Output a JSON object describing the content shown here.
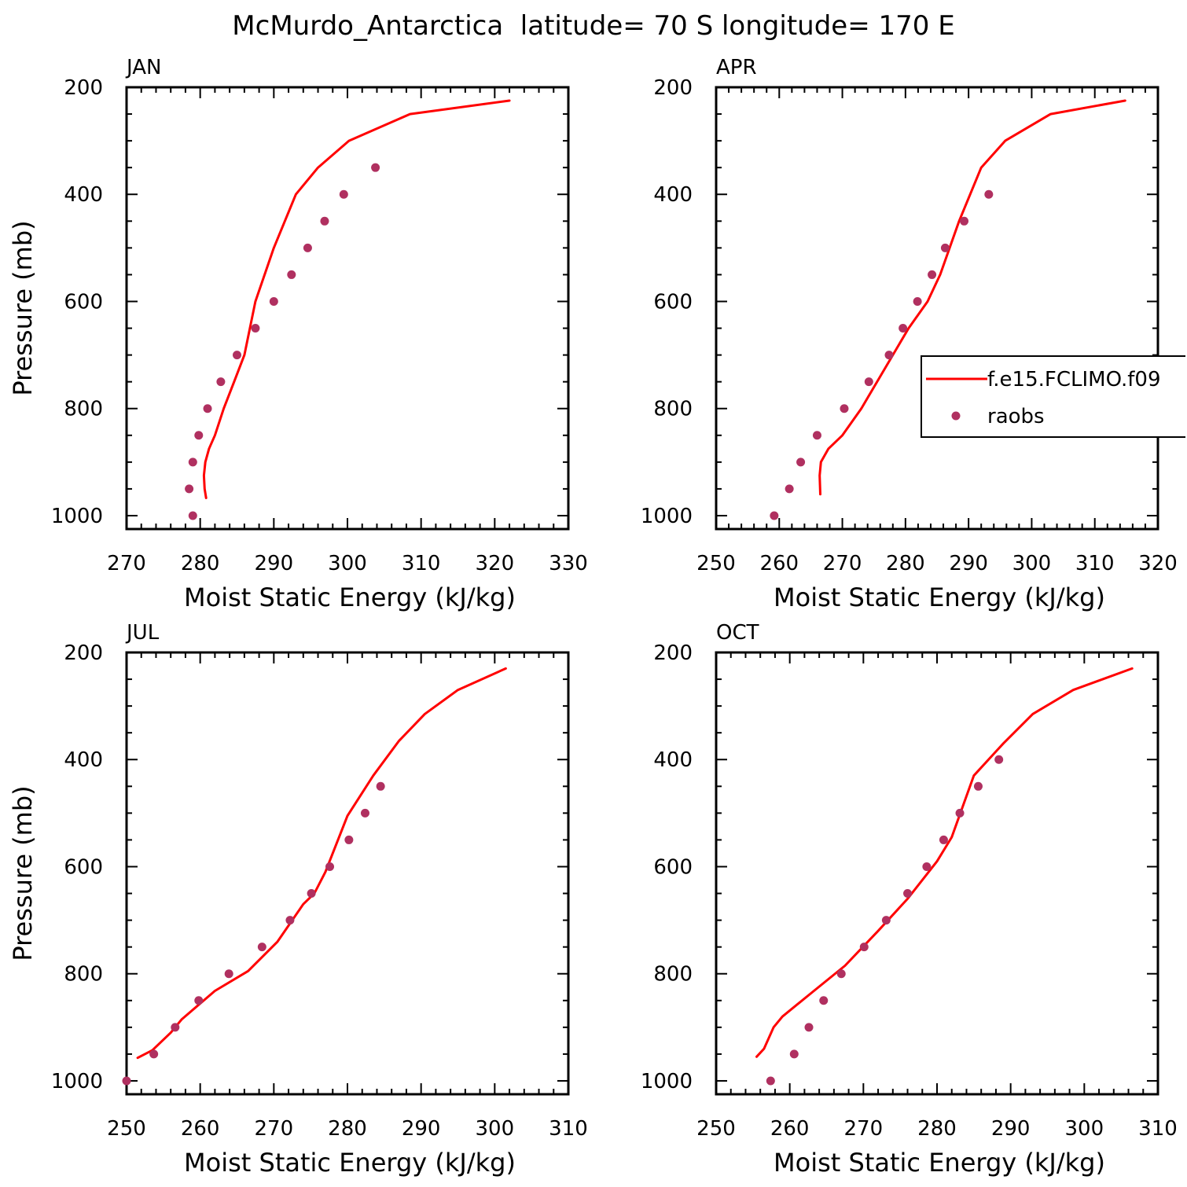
{
  "figure": {
    "title": "McMurdo_Antarctica  latitude= 70 S longitude= 170 E"
  },
  "colors": {
    "model_line": "#ff0000",
    "obs_dot": "#b03060",
    "axis": "#000000"
  },
  "legend": {
    "entries": [
      {
        "label": "f.e15.FCLIMO.f09",
        "kind": "line"
      },
      {
        "label": "raobs",
        "kind": "marker"
      }
    ]
  },
  "chart_data": [
    {
      "type": "line",
      "panel_label": "JAN",
      "xlabel": "Moist Static Energy (kJ/kg)",
      "ylabel": "Pressure (mb)",
      "xlim": [
        270,
        330
      ],
      "ylim": [
        1025,
        200
      ],
      "xticks": [
        270,
        280,
        290,
        300,
        310,
        320,
        330
      ],
      "yticks": [
        200,
        400,
        600,
        800,
        1000
      ],
      "series": [
        {
          "name": "f.e15.FCLIMO.f09",
          "kind": "line",
          "x": [
            280.8,
            280.6,
            280.5,
            280.7,
            281.2,
            282.0,
            283.2,
            284.6,
            286.0,
            287.5,
            290.0,
            293.0,
            296.0,
            300.2,
            308.5,
            322.0
          ],
          "y": [
            967,
            950,
            925,
            900,
            875,
            850,
            800,
            750,
            700,
            600,
            500,
            400,
            350,
            300,
            250,
            225
          ]
        },
        {
          "name": "raobs",
          "kind": "marker",
          "x": [
            279.0,
            278.5,
            279.0,
            279.8,
            281.0,
            282.8,
            285.0,
            287.5,
            290.0,
            292.4,
            294.6,
            296.9,
            299.5,
            303.8
          ],
          "y": [
            1000,
            950,
            900,
            850,
            800,
            750,
            700,
            650,
            600,
            550,
            500,
            450,
            400,
            350
          ]
        }
      ]
    },
    {
      "type": "line",
      "panel_label": "APR",
      "xlabel": "Moist Static Energy (kJ/kg)",
      "ylabel": "",
      "xlim": [
        250,
        320
      ],
      "ylim": [
        1025,
        200
      ],
      "xticks": [
        250,
        260,
        270,
        280,
        290,
        300,
        310,
        320
      ],
      "yticks": [
        200,
        400,
        600,
        800,
        1000
      ],
      "series": [
        {
          "name": "f.e15.FCLIMO.f09",
          "kind": "line",
          "x": [
            266.5,
            266.4,
            266.6,
            267.8,
            270.0,
            273.0,
            275.5,
            278.0,
            280.5,
            283.5,
            285.5,
            288.5,
            292.0,
            295.8,
            303.0,
            314.8
          ],
          "y": [
            960,
            925,
            900,
            875,
            850,
            800,
            750,
            700,
            650,
            600,
            550,
            450,
            350,
            300,
            250,
            225
          ]
        },
        {
          "name": "raobs",
          "kind": "marker",
          "x": [
            259.2,
            261.6,
            263.4,
            266.0,
            270.3,
            274.2,
            277.4,
            279.6,
            281.9,
            284.2,
            286.3,
            289.3,
            293.2
          ],
          "y": [
            1000,
            950,
            900,
            850,
            800,
            750,
            700,
            650,
            600,
            550,
            500,
            450,
            400
          ]
        }
      ]
    },
    {
      "type": "line",
      "panel_label": "JUL",
      "xlabel": "Moist Static Energy (kJ/kg)",
      "ylabel": "Pressure (mb)",
      "xlim": [
        250,
        310
      ],
      "ylim": [
        1025,
        200
      ],
      "xticks": [
        250,
        260,
        270,
        280,
        290,
        300,
        310
      ],
      "yticks": [
        200,
        400,
        600,
        800,
        1000
      ],
      "series": [
        {
          "name": "f.e15.FCLIMO.f09",
          "kind": "line",
          "x": [
            251.5,
            253.5,
            256.0,
            257.5,
            262.0,
            266.5,
            270.5,
            274.0,
            275.5,
            277.0,
            280.0,
            283.5,
            287.0,
            290.5,
            295.0,
            301.5
          ],
          "y": [
            957,
            943,
            910,
            885,
            832,
            795,
            740,
            670,
            650,
            610,
            505,
            430,
            365,
            315,
            270,
            230
          ]
        },
        {
          "name": "raobs",
          "kind": "marker",
          "x": [
            250.0,
            253.7,
            256.6,
            259.8,
            263.9,
            268.4,
            272.2,
            275.1,
            277.6,
            280.2,
            282.4,
            284.5
          ],
          "y": [
            1000,
            950,
            900,
            850,
            800,
            750,
            700,
            650,
            600,
            550,
            500,
            450
          ]
        }
      ]
    },
    {
      "type": "line",
      "panel_label": "OCT",
      "xlabel": "Moist Static Energy (kJ/kg)",
      "ylabel": "",
      "xlim": [
        250,
        310
      ],
      "ylim": [
        1025,
        200
      ],
      "xticks": [
        250,
        260,
        270,
        280,
        290,
        300,
        310
      ],
      "yticks": [
        200,
        400,
        600,
        800,
        1000
      ],
      "series": [
        {
          "name": "f.e15.FCLIMO.f09",
          "kind": "line",
          "x": [
            255.5,
            256.5,
            257.8,
            259.0,
            263.0,
            267.5,
            272.0,
            276.0,
            280.0,
            282.0,
            285.0,
            289.0,
            293.0,
            298.5,
            306.5
          ],
          "y": [
            955,
            940,
            900,
            880,
            835,
            785,
            720,
            660,
            590,
            545,
            430,
            370,
            315,
            270,
            230
          ]
        },
        {
          "name": "raobs",
          "kind": "marker",
          "x": [
            257.4,
            260.6,
            262.6,
            264.6,
            267.0,
            270.1,
            273.1,
            276.0,
            278.6,
            280.9,
            283.1,
            285.6,
            288.4
          ],
          "y": [
            1000,
            950,
            900,
            850,
            800,
            750,
            700,
            650,
            600,
            550,
            500,
            450,
            400
          ]
        }
      ]
    }
  ]
}
